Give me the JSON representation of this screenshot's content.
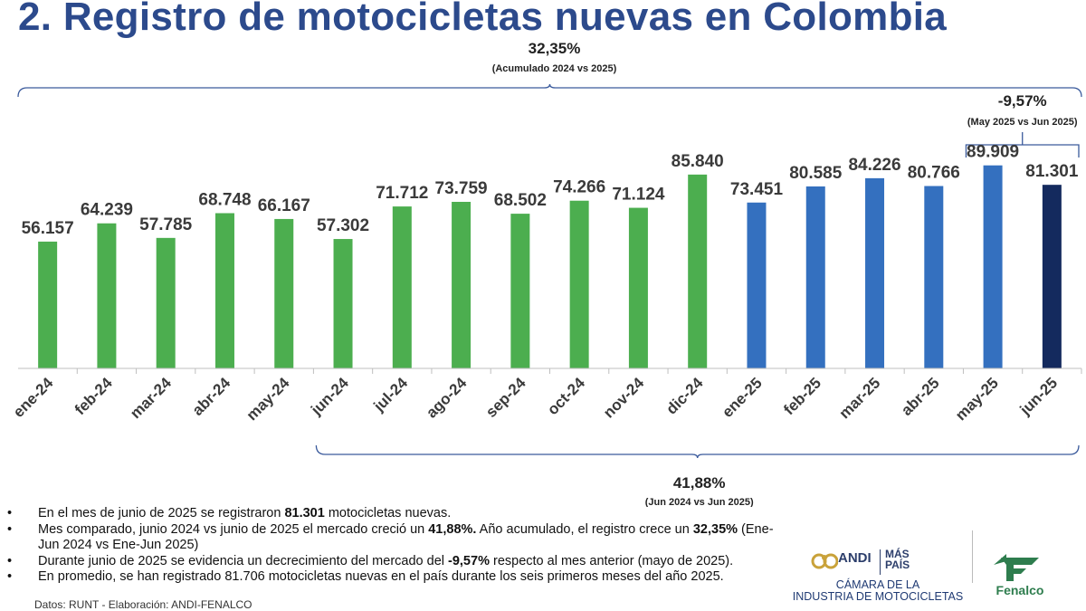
{
  "title": "2. Registro de motocicletas nuevas en Colombia",
  "chart_data": {
    "type": "bar",
    "categories": [
      "ene-24",
      "feb-24",
      "mar-24",
      "abr-24",
      "may-24",
      "jun-24",
      "jul-24",
      "ago-24",
      "sep-24",
      "oct-24",
      "nov-24",
      "dic-24",
      "ene-25",
      "feb-25",
      "mar-25",
      "abr-25",
      "may-25",
      "jun-25"
    ],
    "values": [
      56157,
      64239,
      57785,
      68748,
      66167,
      57302,
      71712,
      73759,
      68502,
      74266,
      71124,
      85840,
      73451,
      80585,
      84226,
      80766,
      89909,
      81301
    ],
    "value_labels": [
      "56.157",
      "64.239",
      "57.785",
      "68.748",
      "66.167",
      "57.302",
      "71.712",
      "73.759",
      "68.502",
      "74.266",
      "71.124",
      "85.840",
      "73.451",
      "80.585",
      "84.226",
      "80.766",
      "89.909",
      "81.301"
    ],
    "bar_colors": [
      "#4cae4f",
      "#4cae4f",
      "#4cae4f",
      "#4cae4f",
      "#4cae4f",
      "#4cae4f",
      "#4cae4f",
      "#4cae4f",
      "#4cae4f",
      "#4cae4f",
      "#4cae4f",
      "#4cae4f",
      "#3470bf",
      "#3470bf",
      "#3470bf",
      "#3470bf",
      "#3470bf",
      "#142a5e"
    ],
    "ylim": [
      0,
      95000
    ],
    "grid": false,
    "annotations": [
      {
        "id": "acumulado",
        "label": "32,35%",
        "sublabel": "(Acumulado 2024 vs 2025)",
        "from": "ene-24",
        "to": "jun-25",
        "placement": "above"
      },
      {
        "id": "mensual",
        "label": "-9,57%",
        "sublabel": "(May 2025 vs Jun 2025)",
        "from": "may-25",
        "to": "jun-25",
        "placement": "above"
      },
      {
        "id": "anual",
        "label": "41,88%",
        "sublabel": "(Jun 2024 vs Jun 2025)",
        "from": "jun-24",
        "to": "jun-25",
        "placement": "below"
      }
    ]
  },
  "bullets": [
    {
      "symbol": "•",
      "segments": [
        {
          "text": "En el mes de junio de 2025 se registraron ",
          "bold": false
        },
        {
          "text": "81.301",
          "bold": true
        },
        {
          "text": " motocicletas nuevas.",
          "bold": false
        }
      ]
    },
    {
      "symbol": "•",
      "segments": [
        {
          "text": "Mes comparado, junio 2024 vs junio de 2025 el mercado creció un ",
          "bold": false
        },
        {
          "text": "41,88%.",
          "bold": true
        },
        {
          "text": " Año acumulado, el registro crece un ",
          "bold": false
        },
        {
          "text": "32,35%",
          "bold": true
        },
        {
          "text": " (Ene-Jun 2024 vs Ene-Jun 2025)",
          "bold": false
        }
      ]
    },
    {
      "symbol": "•",
      "segments": [
        {
          "text": "Durante junio de 2025 se evidencia un decrecimiento del mercado del ",
          "bold": false
        },
        {
          "text": "-9,57%",
          "bold": true
        },
        {
          "text": " respecto al mes anterior (mayo de 2025).",
          "bold": false
        }
      ]
    },
    {
      "symbol": "•",
      "segments": [
        {
          "text": "En promedio, se han registrado 81.706 motocicletas nuevas en el país durante los seis primeros meses del año 2025.",
          "bold": false
        }
      ]
    }
  ],
  "source": "Datos: RUNT - Elaboración: ANDI-FENALCO",
  "logos": {
    "andi": {
      "mark": "ANDI",
      "maspais": "MÁS PAÍS",
      "caption_line1": "CÁMARA DE LA",
      "caption_line2": "INDUSTRIA DE MOTOCICLETAS"
    },
    "fenalco": {
      "name": "Fenalco",
      "color": "#2e7d4e"
    }
  }
}
